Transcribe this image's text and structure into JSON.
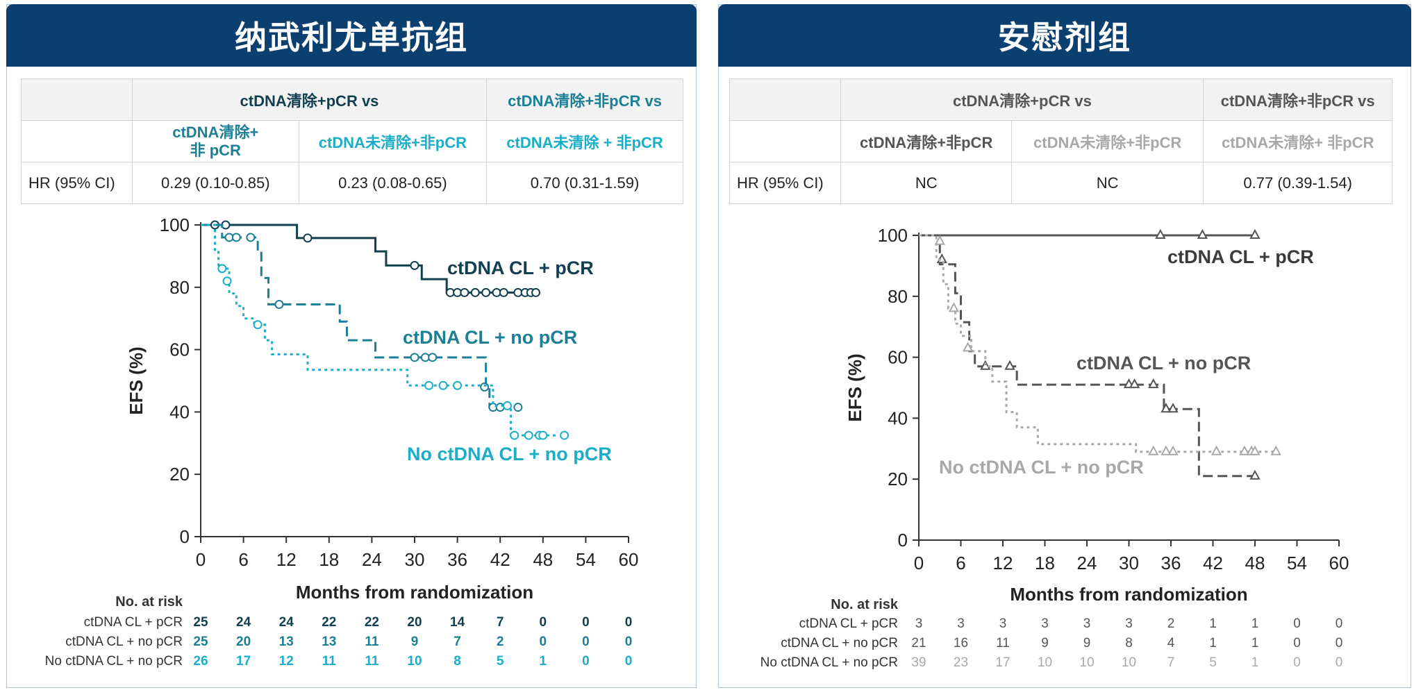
{
  "left": {
    "title": "纳武利尤单抗组",
    "table": {
      "header_group1": "ctDNA清除+pCR vs",
      "header_group2": "ctDNA清除+非pCR vs",
      "sub1": "ctDNA清除+\n非 pCR",
      "sub2": "ctDNA未清除+非pCR",
      "sub3": "ctDNA未清除 + 非pCR",
      "row_label": "HR (95% CI)",
      "hr1": "0.29 (0.10-0.85)",
      "hr2": "0.23 (0.08-0.65)",
      "hr3": "0.70 (0.31-1.59)"
    }
  },
  "right": {
    "title": "安慰剂组",
    "table": {
      "header_group1": "ctDNA清除+pCR vs",
      "header_group2": "ctDNA清除+非pCR vs",
      "sub1": "ctDNA清除+非pCR",
      "sub2": "ctDNA未清除+非pCR",
      "sub3": "ctDNA未清除+ 非pCR",
      "row_label": "HR (95% CI)",
      "hr1": "NC",
      "hr2": "NC",
      "hr3": "0.77 (0.39-1.54)"
    }
  },
  "colors": {
    "banner": "#0b3f6f",
    "left_dark": "#123f4f",
    "left_mid": "#1b7f95",
    "left_light": "#1aaec8",
    "right_dark": "#555555",
    "right_light": "#a8a8a8"
  },
  "chart_data": [
    {
      "type": "line",
      "subtype": "kaplan-meier",
      "xlabel": "Months from randomization",
      "ylabel": "EFS (%)",
      "xlim": [
        0,
        60
      ],
      "ylim": [
        0,
        100
      ],
      "xticks": [
        0,
        6,
        12,
        18,
        24,
        30,
        36,
        42,
        48,
        54,
        60
      ],
      "yticks": [
        0,
        20,
        40,
        60,
        80,
        100
      ],
      "risk_header": "No. at risk",
      "series": [
        {
          "name": "ctDNA CL + pCR",
          "risk_label": "ctDNA CL + pCR",
          "color": "#123f4f",
          "dash": "solid",
          "steps": [
            [
              0,
              100
            ],
            [
              13.5,
              95.8
            ],
            [
              24.5,
              91.5
            ],
            [
              26,
              87
            ],
            [
              31,
              82.6
            ],
            [
              34.5,
              78.3
            ],
            [
              47,
              78.3
            ]
          ],
          "censor": [
            [
              2,
              100
            ],
            [
              3.5,
              100
            ],
            [
              15,
              95.8
            ],
            [
              30,
              87
            ],
            [
              35,
              78.3
            ],
            [
              36,
              78.3
            ],
            [
              37,
              78.3
            ],
            [
              38.5,
              78.3
            ],
            [
              40,
              78.3
            ],
            [
              41.5,
              78.3
            ],
            [
              42.5,
              78.3
            ],
            [
              44.5,
              78.3
            ],
            [
              45.5,
              78.3
            ],
            [
              46.3,
              78.3
            ],
            [
              47,
              78.3
            ]
          ],
          "at_risk": [
            25,
            24,
            24,
            22,
            22,
            20,
            14,
            7,
            0,
            0,
            0
          ]
        },
        {
          "name": "ctDNA CL + no pCR",
          "risk_label": "ctDNA CL + no pCR",
          "color": "#1b7f95",
          "dash": "dash",
          "steps": [
            [
              0,
              100
            ],
            [
              3,
              96
            ],
            [
              8,
              91.5
            ],
            [
              8.5,
              83
            ],
            [
              9.5,
              74.5
            ],
            [
              19.5,
              69
            ],
            [
              20.5,
              63
            ],
            [
              24.5,
              57.5
            ],
            [
              40,
              48
            ],
            [
              40.5,
              41.5
            ],
            [
              44.5,
              41.5
            ]
          ],
          "censor": [
            [
              4,
              96
            ],
            [
              5,
              96
            ],
            [
              7,
              96
            ],
            [
              11,
              74.5
            ],
            [
              30,
              57.5
            ],
            [
              31.5,
              57.5
            ],
            [
              32.5,
              57.5
            ],
            [
              39.8,
              48
            ],
            [
              41,
              41.5
            ],
            [
              42,
              41.5
            ],
            [
              44.5,
              41.5
            ]
          ],
          "at_risk": [
            25,
            20,
            13,
            13,
            11,
            9,
            7,
            2,
            0,
            0,
            0
          ]
        },
        {
          "name": "No ctDNA CL + no pCR",
          "risk_label": "No ctDNA CL + no pCR",
          "color": "#1aaec8",
          "dash": "dot",
          "steps": [
            [
              0,
              100
            ],
            [
              2,
              92
            ],
            [
              2.5,
              86
            ],
            [
              4,
              78
            ],
            [
              5,
              74
            ],
            [
              6,
              70
            ],
            [
              7.5,
              68
            ],
            [
              9,
              63
            ],
            [
              10,
              58.5
            ],
            [
              15,
              53.5
            ],
            [
              29,
              48.5
            ],
            [
              41,
              42
            ],
            [
              43.5,
              32.5
            ],
            [
              50,
              32.5
            ]
          ],
          "censor": [
            [
              3,
              86
            ],
            [
              3.7,
              82
            ],
            [
              8,
              68
            ],
            [
              32,
              48.5
            ],
            [
              34,
              48.5
            ],
            [
              36,
              48.5
            ],
            [
              43,
              42
            ],
            [
              44,
              32.5
            ],
            [
              46,
              32.5
            ],
            [
              47.5,
              32.5
            ],
            [
              48,
              32.5
            ],
            [
              51,
              32.5
            ]
          ],
          "at_risk": [
            26,
            17,
            12,
            11,
            11,
            10,
            8,
            5,
            1,
            0,
            0
          ]
        }
      ]
    },
    {
      "type": "line",
      "subtype": "kaplan-meier",
      "xlabel": "Months from randomization",
      "ylabel": "EFS (%)",
      "xlim": [
        0,
        60
      ],
      "ylim": [
        0,
        100
      ],
      "xticks": [
        0,
        6,
        12,
        18,
        24,
        30,
        36,
        42,
        48,
        54,
        60
      ],
      "yticks": [
        0,
        20,
        40,
        60,
        80,
        100
      ],
      "risk_header": "No. at risk",
      "series": [
        {
          "name": "ctDNA CL + pCR",
          "risk_label": "ctDNA CL + pCR",
          "color": "#555555",
          "dash": "solid",
          "steps": [
            [
              0,
              100
            ],
            [
              48,
              100
            ]
          ],
          "censor": [
            [
              34.5,
              100
            ],
            [
              40.5,
              100
            ],
            [
              48,
              100
            ]
          ],
          "at_risk": [
            3,
            3,
            3,
            3,
            3,
            3,
            2,
            1,
            1,
            0,
            0
          ]
        },
        {
          "name": "ctDNA CL + no pCR",
          "risk_label": "ctDNA CL + no pCR",
          "color": "#555555",
          "dash": "dash",
          "steps": [
            [
              0,
              100
            ],
            [
              3,
              90.5
            ],
            [
              5.2,
              81
            ],
            [
              6,
              71.5
            ],
            [
              7.2,
              62
            ],
            [
              8,
              57
            ],
            [
              14,
              51
            ],
            [
              35,
              43
            ],
            [
              40,
              21
            ],
            [
              48,
              21
            ]
          ],
          "censor": [
            [
              3.3,
              92
            ],
            [
              9.5,
              57
            ],
            [
              13,
              57
            ],
            [
              30,
              51
            ],
            [
              30.8,
              51
            ],
            [
              33.5,
              51
            ],
            [
              35.3,
              43
            ],
            [
              36.3,
              43
            ],
            [
              48,
              21
            ]
          ],
          "at_risk": [
            21,
            16,
            11,
            9,
            9,
            8,
            4,
            1,
            1,
            0,
            0
          ]
        },
        {
          "name": "No ctDNA CL + no pCR",
          "risk_label": "No ctDNA CL + no pCR",
          "color": "#a8a8a8",
          "dash": "dot",
          "steps": [
            [
              0,
              100
            ],
            [
              2.5,
              92
            ],
            [
              3.5,
              84
            ],
            [
              4.2,
              76
            ],
            [
              5.2,
              71
            ],
            [
              6,
              67
            ],
            [
              7.5,
              62
            ],
            [
              9.5,
              57
            ],
            [
              10.5,
              52
            ],
            [
              12.5,
              42
            ],
            [
              14,
              37
            ],
            [
              17,
              31.5
            ],
            [
              31,
              29
            ],
            [
              51,
              29
            ]
          ],
          "censor": [
            [
              3,
              98
            ],
            [
              5,
              76
            ],
            [
              7,
              63
            ],
            [
              33.5,
              29
            ],
            [
              35.3,
              29
            ],
            [
              36.3,
              29
            ],
            [
              42.5,
              29
            ],
            [
              46.5,
              29
            ],
            [
              47.5,
              29
            ],
            [
              48,
              29
            ],
            [
              51,
              29
            ]
          ],
          "at_risk": [
            39,
            23,
            17,
            10,
            10,
            10,
            7,
            5,
            1,
            0,
            0
          ]
        }
      ]
    }
  ]
}
